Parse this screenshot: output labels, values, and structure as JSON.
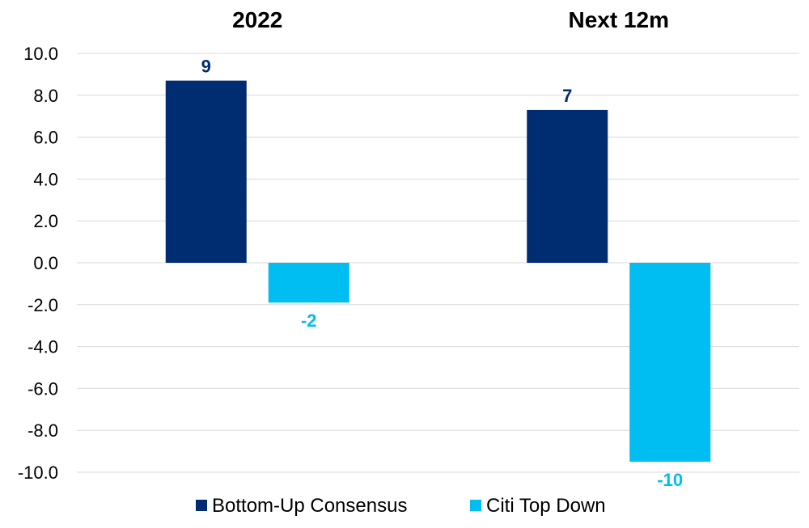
{
  "chart_data": {
    "type": "bar",
    "categories": [
      "2022",
      "Next 12m"
    ],
    "series": [
      {
        "name": "Bottom-Up Consensus",
        "values": [
          8.7,
          7.3
        ],
        "labels": [
          "9",
          "7"
        ],
        "color": "#002d72"
      },
      {
        "name": "Citi Top Down",
        "values": [
          -1.9,
          -9.5
        ],
        "labels": [
          "-2",
          "-10"
        ],
        "color": "#00bdf2"
      }
    ],
    "ylim": [
      -10,
      10
    ],
    "yticks": [
      "10.0",
      "8.0",
      "6.0",
      "4.0",
      "2.0",
      "0.0",
      "-2.0",
      "-4.0",
      "-6.0",
      "-8.0",
      "-10.0"
    ],
    "ytick_values": [
      10,
      8,
      6,
      4,
      2,
      0,
      -2,
      -4,
      -6,
      -8,
      -10
    ],
    "grid": true,
    "legend_position": "bottom",
    "category_label_position": "top"
  }
}
